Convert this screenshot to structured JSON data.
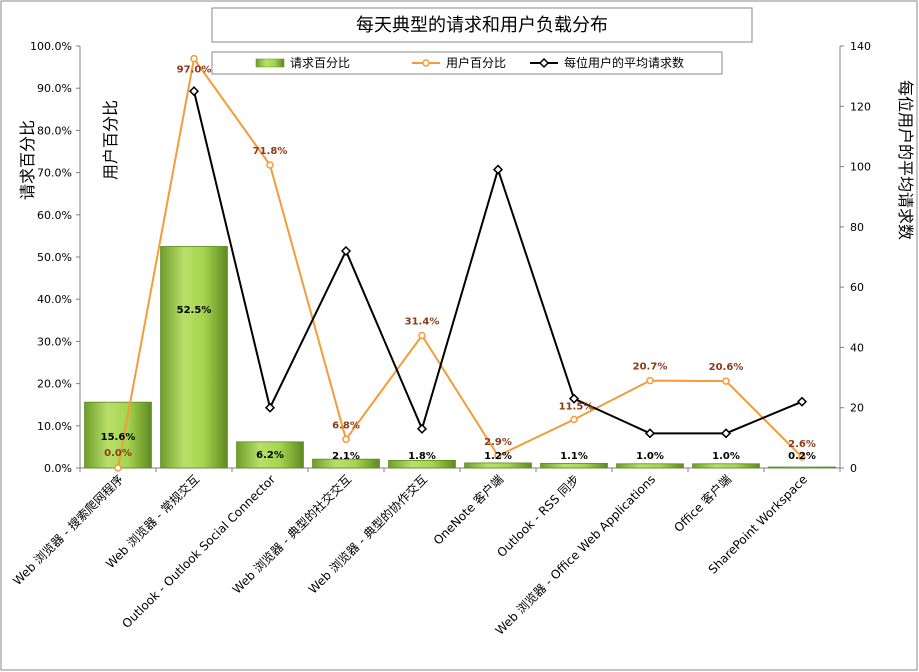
{
  "chart_data": {
    "type": "bar",
    "title": "每天典型的请求和用户负载分布",
    "ylabel_left": "请求百分比",
    "ylabel_left_inner": "用户百分比",
    "ylabel_right": "每位用户的平均请求数",
    "categories": [
      "Web 浏览器 - 搜索爬网程序",
      "Web 浏览器 - 常规交互",
      "Outlook - Outlook Social Connector",
      "Web 浏览器 - 典型的社交交互",
      "Web 浏览器 - 典型的协作交互",
      "OneNote 客户端",
      "Outlook - RSS 同步",
      "Web 浏览器 - Office Web Applications",
      "Office 客户端",
      "SharePoint Workspace"
    ],
    "ylim_left": [
      0,
      100
    ],
    "ylim_right": [
      0,
      140
    ],
    "left_ticks": [
      "0.0%",
      "10.0%",
      "20.0%",
      "30.0%",
      "40.0%",
      "50.0%",
      "60.0%",
      "70.0%",
      "80.0%",
      "90.0%",
      "100.0%"
    ],
    "right_ticks": [
      "0",
      "20",
      "40",
      "60",
      "80",
      "100",
      "120",
      "140"
    ],
    "series": [
      {
        "name": "请求百分比",
        "kind": "bar",
        "axis": "left",
        "color": "#8dc63f",
        "values": [
          15.6,
          52.5,
          6.2,
          2.1,
          1.8,
          1.2,
          1.1,
          1.0,
          1.0,
          0.2
        ],
        "labels": [
          "15.6%",
          "52.5%",
          "6.2%",
          "2.1%",
          "1.8%",
          "1.2%",
          "1.1%",
          "1.0%",
          "1.0%",
          "0.2%"
        ]
      },
      {
        "name": "用户百分比",
        "kind": "line",
        "axis": "left",
        "color": "#f59b3a",
        "values": [
          0.0,
          97.0,
          71.8,
          6.8,
          31.4,
          2.9,
          11.5,
          20.7,
          20.6,
          2.6
        ],
        "labels": [
          "0.0%",
          "97.0%",
          "71.8%",
          "6.8%",
          "31.4%",
          "2.9%",
          "11.5%",
          "20.7%",
          "20.6%",
          "2.6%"
        ]
      },
      {
        "name": "每位用户的平均请求数",
        "kind": "line",
        "axis": "right",
        "color": "#000000",
        "values": [
          null,
          125,
          20,
          72,
          13,
          99,
          23,
          11.5,
          11.5,
          22
        ]
      }
    ],
    "legend_position": "top",
    "grid": false
  }
}
